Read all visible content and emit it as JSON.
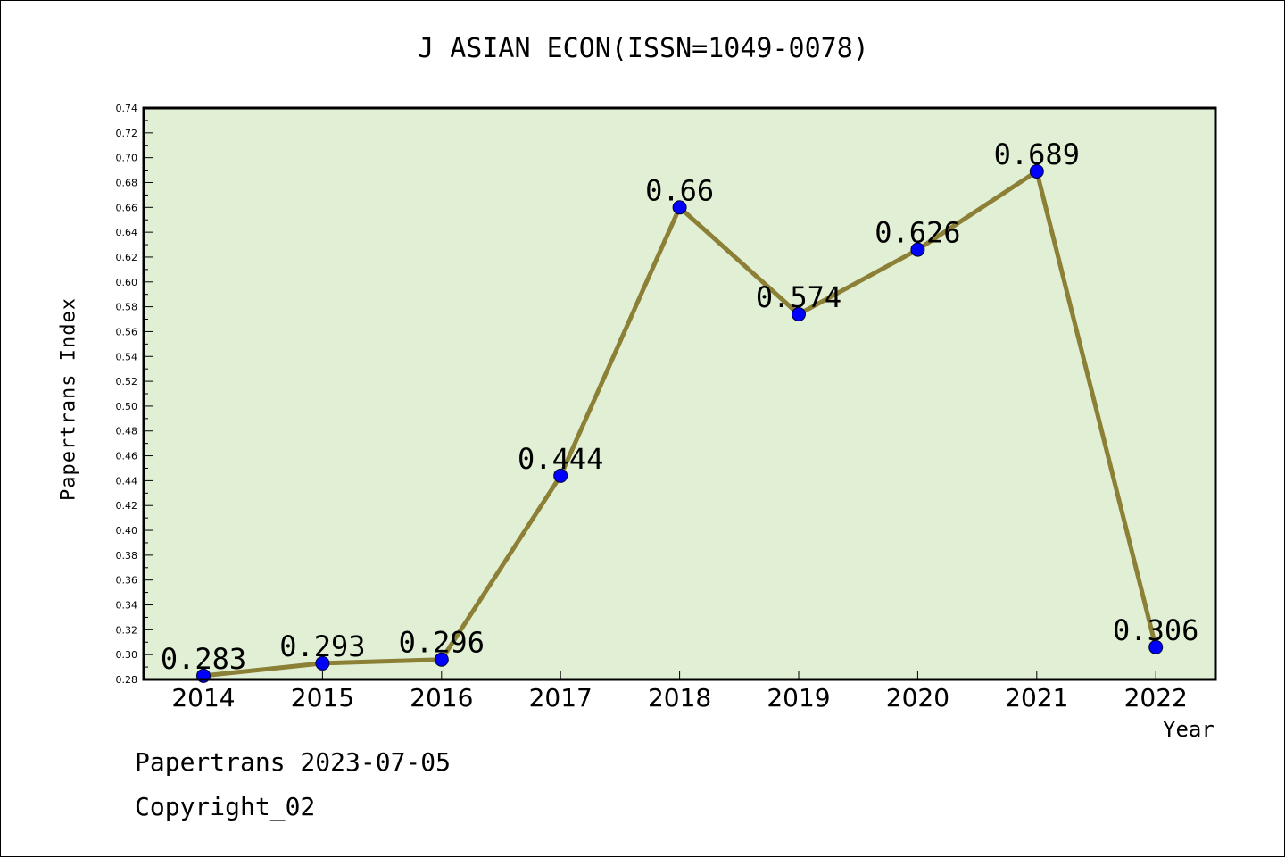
{
  "chart_data": {
    "type": "line",
    "title": "J ASIAN ECON(ISSN=1049-0078)",
    "xlabel": "Year",
    "ylabel": "Papertrans Index",
    "categories": [
      "2014",
      "2015",
      "2016",
      "2017",
      "2018",
      "2019",
      "2020",
      "2021",
      "2022"
    ],
    "series": [
      {
        "values": [
          0.283,
          0.293,
          0.296,
          0.444,
          0.66,
          0.574,
          0.626,
          0.689,
          0.306
        ]
      }
    ],
    "data_labels": [
      "0.283",
      "0.293",
      "0.296",
      "0.444",
      "0.66",
      "0.574",
      "0.626",
      "0.689",
      "0.306"
    ],
    "ylim": [
      0.28,
      0.74
    ],
    "yticks": [
      "0.28",
      "0.30",
      "0.32",
      "0.34",
      "0.36",
      "0.38",
      "0.40",
      "0.42",
      "0.44",
      "0.46",
      "0.48",
      "0.50",
      "0.52",
      "0.54",
      "0.56",
      "0.58",
      "0.60",
      "0.62",
      "0.64",
      "0.66",
      "0.68",
      "0.70",
      "0.72",
      "0.74"
    ],
    "grid": false,
    "colors": {
      "plot_background": "#e1efd4",
      "line": "#8c7f36",
      "marker": "#0000ff"
    }
  },
  "footer": {
    "date_text": "Papertrans 2023-07-05",
    "copyright_text": "Copyright_02"
  }
}
